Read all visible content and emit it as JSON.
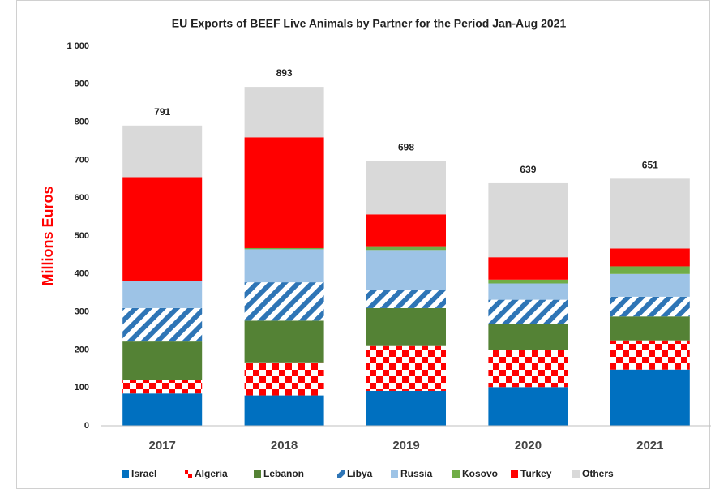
{
  "chart_data": {
    "type": "stacked-bar",
    "title": "EU Exports of BEEF Live Animals by Partner for the Period Jan-Aug 2021",
    "y_label": "Millions Euros",
    "categories": [
      "2017",
      "2018",
      "2019",
      "2020",
      "2021"
    ],
    "series": [
      {
        "name": "Israel",
        "color": "#0070c0",
        "pattern": "solid",
        "values": [
          85,
          80,
          92,
          102,
          148
        ]
      },
      {
        "name": "Algeria",
        "color": "#ff0000",
        "pattern": "checker",
        "values": [
          35,
          85,
          118,
          98,
          77
        ]
      },
      {
        "name": "Lebanon",
        "color": "#548235",
        "pattern": "solid",
        "values": [
          102,
          112,
          100,
          68,
          63
        ]
      },
      {
        "name": "Libya",
        "color": "#2e75b6",
        "pattern": "stripes",
        "values": [
          88,
          101,
          48,
          64,
          52
        ]
      },
      {
        "name": "Russia",
        "color": "#9dc3e6",
        "pattern": "solid",
        "values": [
          72,
          87,
          105,
          43,
          60
        ]
      },
      {
        "name": "Kosovo",
        "color": "#70ad47",
        "pattern": "solid",
        "values": [
          0,
          3,
          10,
          10,
          20
        ]
      },
      {
        "name": "Turkey",
        "color": "#ff0000",
        "pattern": "solid",
        "values": [
          273,
          292,
          84,
          59,
          47
        ]
      },
      {
        "name": "Others",
        "color": "#d9d9d9",
        "pattern": "solid",
        "values": [
          136,
          133,
          141,
          195,
          184
        ]
      }
    ],
    "totals": [
      791,
      893,
      698,
      639,
      651
    ],
    "ylim": [
      0,
      1000
    ],
    "yticks": [
      0,
      100,
      200,
      300,
      400,
      500,
      600,
      700,
      800,
      900,
      {
        "value": 1000,
        "label": "1 000"
      }
    ],
    "grid": false,
    "legend": "bottom"
  }
}
